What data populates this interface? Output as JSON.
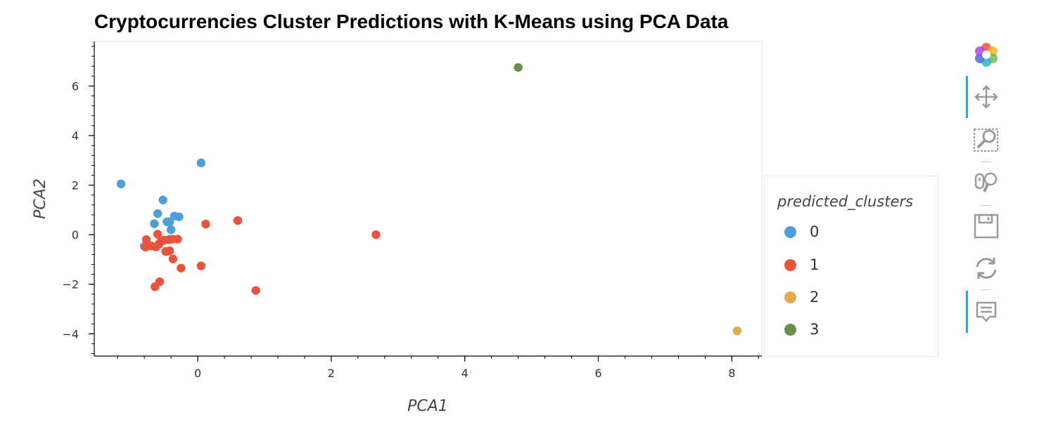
{
  "chart_data": {
    "type": "scatter",
    "title": "Cryptocurrencies Cluster Predictions with K-Means using PCA Data",
    "xlabel": "PCA1",
    "ylabel": "PCA2",
    "xlim": [
      -1.55,
      8.45
    ],
    "ylim": [
      -4.9,
      7.8
    ],
    "xticks": [
      0,
      2,
      4,
      6,
      8
    ],
    "xtick_labels": [
      "0",
      "2",
      "4",
      "6",
      "8"
    ],
    "yticks": [
      -4,
      -2,
      0,
      2,
      4,
      6
    ],
    "ytick_labels": [
      "−4",
      "−2",
      "0",
      "2",
      "4",
      "6"
    ],
    "grid": false,
    "legend": {
      "title": "predicted_clusters",
      "placement": "right",
      "entries": [
        "0",
        "1",
        "2",
        "3"
      ]
    },
    "series": [
      {
        "name": "0",
        "color": "#4c9fd8",
        "points": [
          [
            -1.15,
            2.05
          ],
          [
            0.05,
            2.9
          ],
          [
            -0.52,
            1.4
          ],
          [
            -0.6,
            0.85
          ],
          [
            -0.35,
            0.75
          ],
          [
            -0.28,
            0.72
          ],
          [
            -0.46,
            0.52
          ],
          [
            -0.42,
            0.52
          ],
          [
            -0.65,
            0.44
          ],
          [
            -0.4,
            0.2
          ],
          [
            -0.8,
            -0.47
          ]
        ]
      },
      {
        "name": "1",
        "color": "#e8533a",
        "points": [
          [
            0.12,
            0.43
          ],
          [
            0.6,
            0.57
          ],
          [
            2.67,
            0.0
          ],
          [
            -0.6,
            0.02
          ],
          [
            -0.77,
            -0.2
          ],
          [
            -0.5,
            -0.22
          ],
          [
            -0.43,
            -0.2
          ],
          [
            -0.38,
            -0.18
          ],
          [
            -0.3,
            -0.18
          ],
          [
            -0.58,
            -0.38
          ],
          [
            -0.7,
            -0.45
          ],
          [
            -0.78,
            -0.5
          ],
          [
            -0.63,
            -0.5
          ],
          [
            -0.48,
            -0.68
          ],
          [
            -0.42,
            -0.65
          ],
          [
            -0.37,
            -0.98
          ],
          [
            -0.25,
            -1.35
          ],
          [
            0.05,
            -1.26
          ],
          [
            -0.57,
            -1.9
          ],
          [
            -0.64,
            -2.1
          ],
          [
            0.87,
            -2.25
          ],
          [
            -0.55,
            -0.28
          ]
        ]
      },
      {
        "name": "2",
        "color": "#dfac4e",
        "points": [
          [
            8.08,
            -3.88
          ]
        ]
      },
      {
        "name": "3",
        "color": "#6b8e4e",
        "points": [
          [
            4.8,
            6.75
          ]
        ]
      }
    ]
  },
  "toolbar": {
    "items": [
      {
        "name": "bokeh-logo-icon",
        "active": false
      },
      {
        "name": "pan-icon",
        "active": true
      },
      {
        "name": "box-zoom-icon",
        "active": false
      },
      {
        "name": "wheel-zoom-icon",
        "active": false
      },
      {
        "name": "save-icon",
        "active": false
      },
      {
        "name": "reset-icon",
        "active": false
      },
      {
        "name": "hover-icon",
        "active": true
      }
    ],
    "accent_color": "#26aae1"
  }
}
